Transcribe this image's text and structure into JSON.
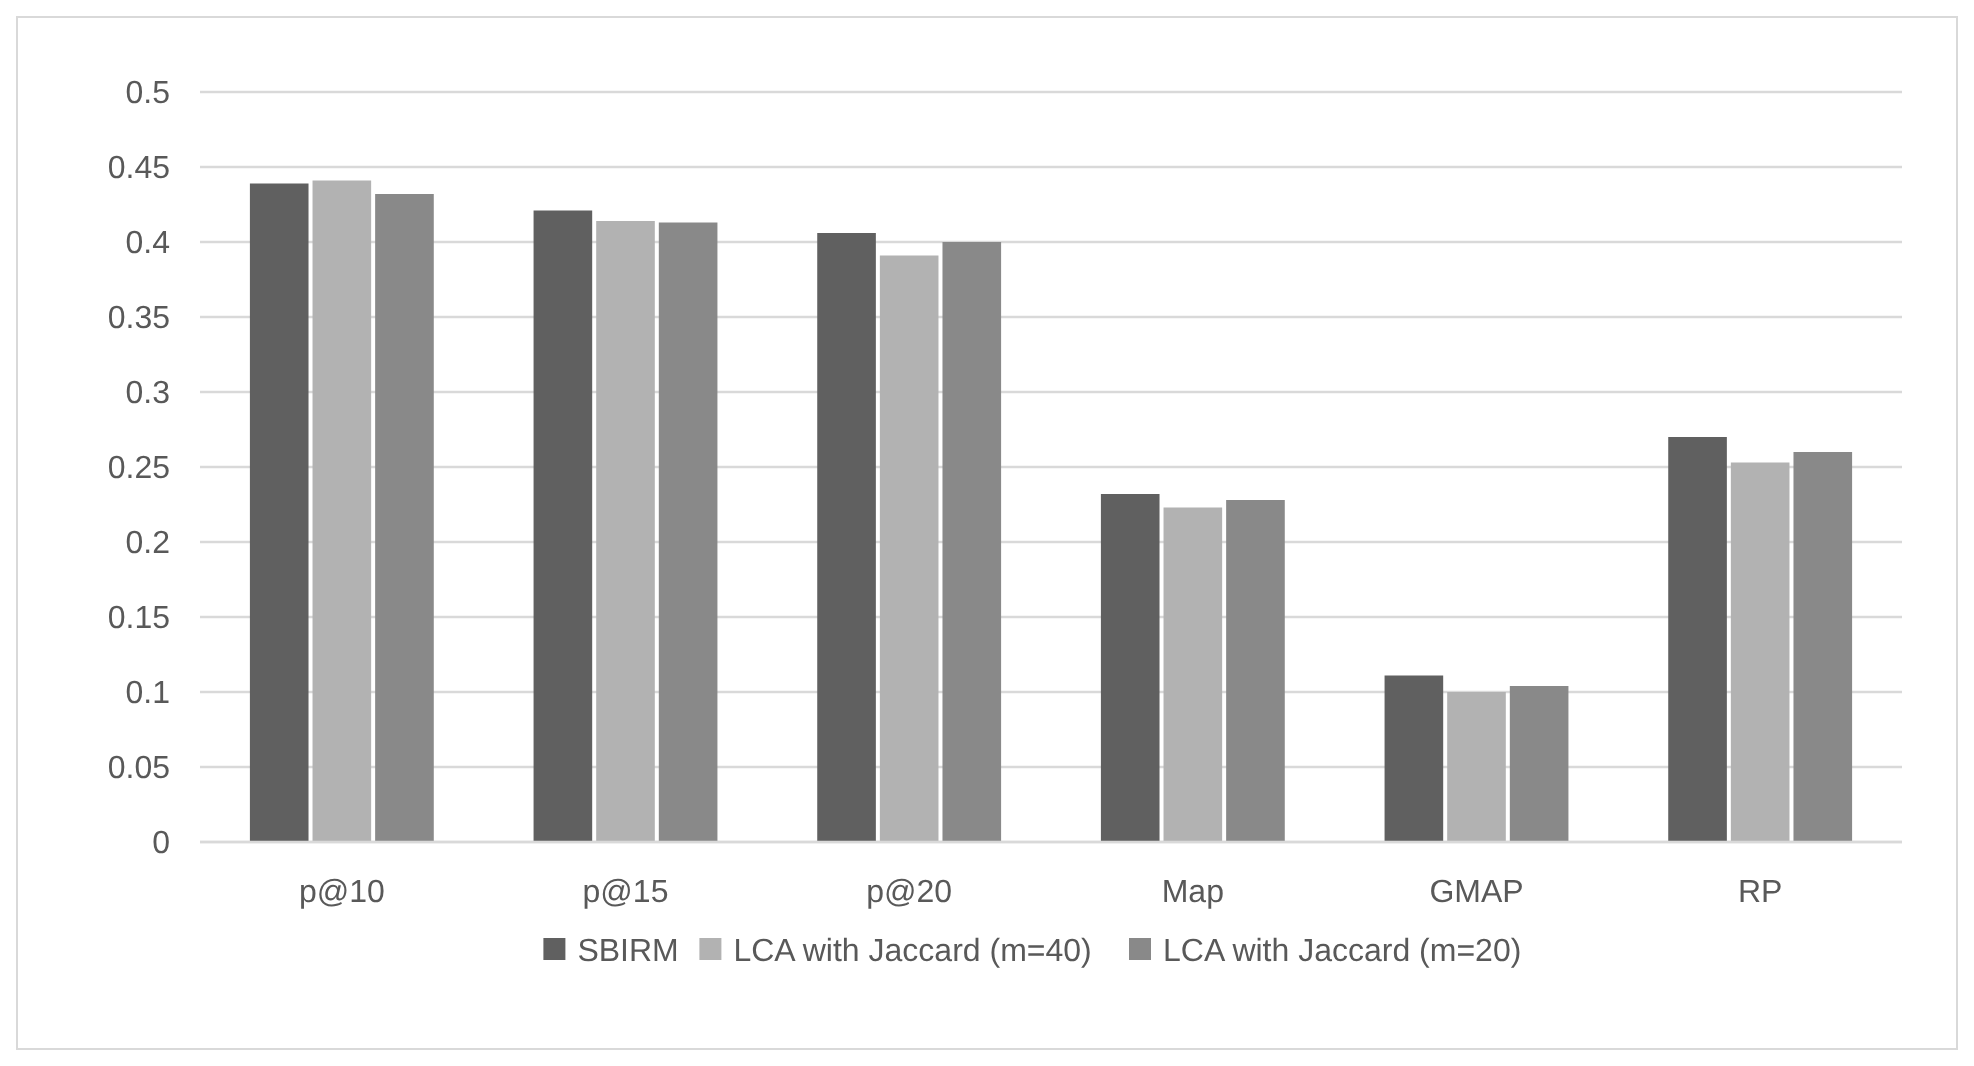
{
  "chart_data": {
    "type": "bar",
    "categories": [
      "p@10",
      "p@15",
      "p@20",
      "Map",
      "GMAP",
      "RP"
    ],
    "series": [
      {
        "name": "SBIRM",
        "color": "#606060",
        "values": [
          0.439,
          0.421,
          0.406,
          0.232,
          0.111,
          0.27
        ]
      },
      {
        "name": "LCA with Jaccard (m=40)",
        "color": "#b2b2b2",
        "values": [
          0.441,
          0.414,
          0.391,
          0.223,
          0.1,
          0.253
        ]
      },
      {
        "name": "LCA with Jaccard (m=20)",
        "color": "#898989",
        "values": [
          0.432,
          0.413,
          0.4,
          0.228,
          0.104,
          0.26
        ]
      }
    ],
    "ylim": [
      0,
      0.5
    ],
    "yticks": [
      0,
      0.05,
      0.1,
      0.15,
      0.2,
      0.25,
      0.3,
      0.35,
      0.4,
      0.45,
      0.5
    ],
    "grid": "y",
    "legend": "bottom"
  }
}
